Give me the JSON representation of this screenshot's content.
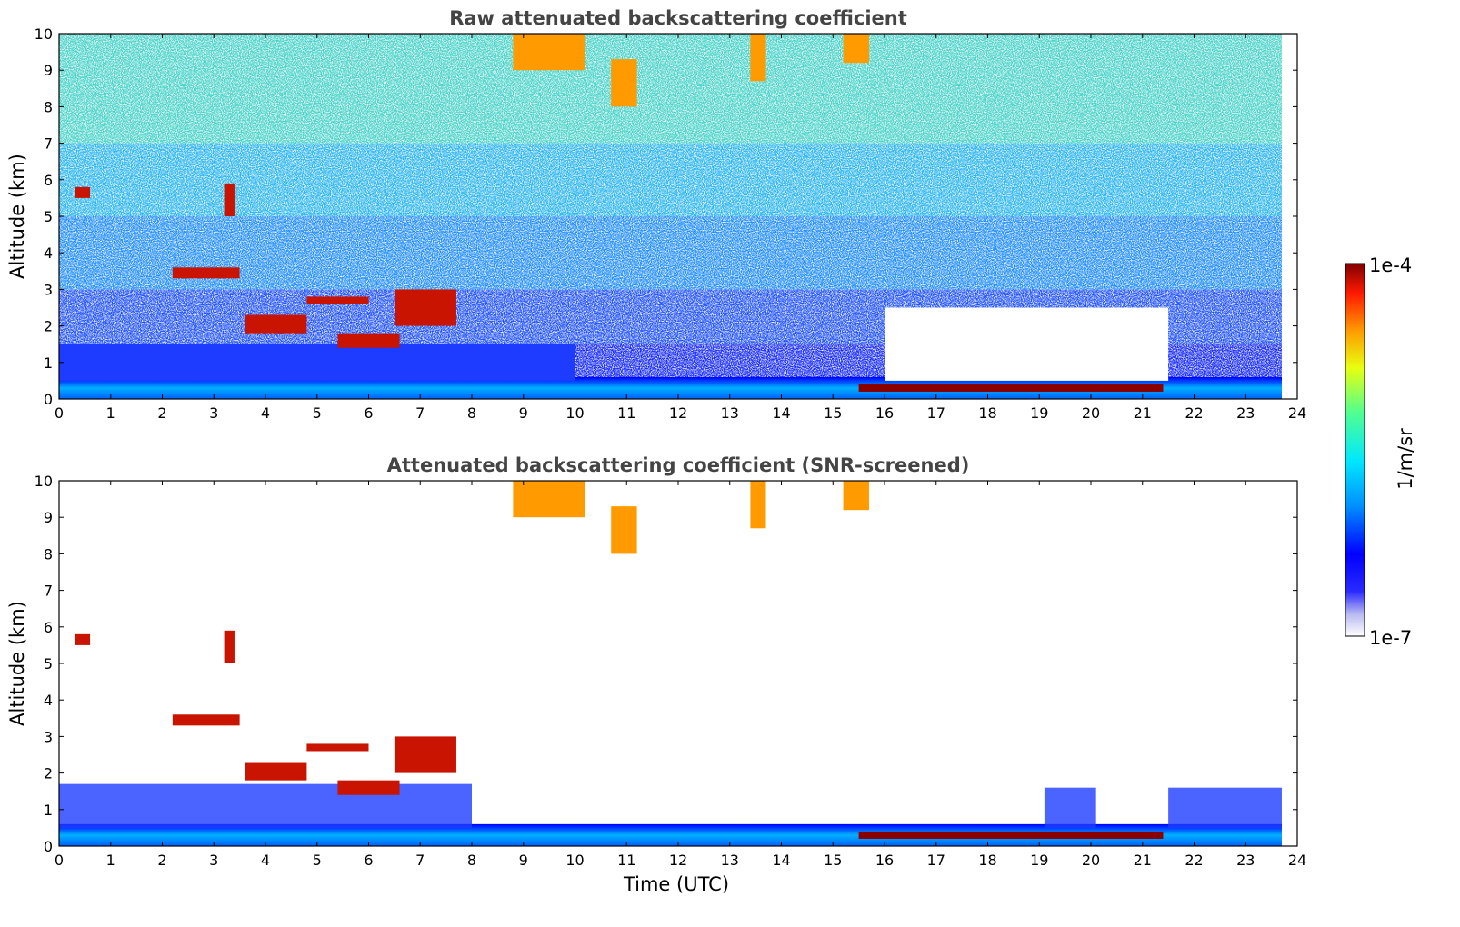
{
  "chart_data": [
    {
      "type": "heatmap",
      "title": "Raw attenuated backscattering coefficient",
      "xlabel": "",
      "ylabel": "Altitude (km)",
      "xlim": [
        0,
        24
      ],
      "ylim": [
        0,
        10
      ],
      "x_ticks": [
        "0",
        "1",
        "2",
        "3",
        "4",
        "5",
        "6",
        "7",
        "8",
        "9",
        "10",
        "11",
        "12",
        "13",
        "14",
        "15",
        "16",
        "17",
        "18",
        "19",
        "20",
        "21",
        "22",
        "23",
        "24"
      ],
      "y_ticks": [
        "0",
        "1",
        "2",
        "3",
        "4",
        "5",
        "6",
        "7",
        "8",
        "9",
        "10"
      ],
      "data_time_range": [
        0,
        23.7
      ],
      "colorscale": "jet",
      "features": [
        {
          "kind": "boundary_layer",
          "t": [
            0,
            23.7
          ],
          "alt": [
            0,
            0.6
          ]
        },
        {
          "kind": "aerosol_layer",
          "t": [
            0,
            10
          ],
          "alt": [
            0.5,
            1.5
          ]
        },
        {
          "kind": "cloud",
          "t": [
            0.3,
            0.6
          ],
          "alt": [
            5.5,
            5.8
          ]
        },
        {
          "kind": "cloud",
          "t": [
            3.2,
            3.4
          ],
          "alt": [
            5.0,
            5.9
          ]
        },
        {
          "kind": "cloud",
          "t": [
            2.2,
            3.5
          ],
          "alt": [
            3.3,
            3.6
          ]
        },
        {
          "kind": "cloud",
          "t": [
            3.6,
            4.8
          ],
          "alt": [
            1.8,
            2.3
          ]
        },
        {
          "kind": "cloud",
          "t": [
            4.8,
            6.0
          ],
          "alt": [
            2.6,
            2.8
          ]
        },
        {
          "kind": "cloud",
          "t": [
            5.4,
            6.6
          ],
          "alt": [
            1.4,
            1.8
          ]
        },
        {
          "kind": "cloud",
          "t": [
            6.5,
            7.7
          ],
          "alt": [
            2.0,
            3.0
          ]
        },
        {
          "kind": "cirrus",
          "t": [
            8.8,
            10.2
          ],
          "alt": [
            9.0,
            10.0
          ]
        },
        {
          "kind": "cirrus",
          "t": [
            10.7,
            11.2
          ],
          "alt": [
            8.0,
            9.3
          ]
        },
        {
          "kind": "cirrus",
          "t": [
            13.4,
            13.7
          ],
          "alt": [
            8.7,
            10.0
          ]
        },
        {
          "kind": "cirrus",
          "t": [
            15.2,
            15.7
          ],
          "alt": [
            9.2,
            10.0
          ]
        },
        {
          "kind": "low_cloud",
          "t": [
            15.5,
            21.4
          ],
          "alt": [
            0.2,
            0.4
          ]
        },
        {
          "kind": "attenuated_signal",
          "t": [
            16.0,
            21.5
          ],
          "alt": [
            0.5,
            2.5
          ]
        }
      ]
    },
    {
      "type": "heatmap",
      "title": "Attenuated backscattering coefficient (SNR-screened)",
      "xlabel": "Time (UTC)",
      "ylabel": "Altitude (km)",
      "xlim": [
        0,
        24
      ],
      "ylim": [
        0,
        10
      ],
      "x_ticks": [
        "0",
        "1",
        "2",
        "3",
        "4",
        "5",
        "6",
        "7",
        "8",
        "9",
        "10",
        "11",
        "12",
        "13",
        "14",
        "15",
        "16",
        "17",
        "18",
        "19",
        "20",
        "21",
        "22",
        "23",
        "24"
      ],
      "y_ticks": [
        "0",
        "1",
        "2",
        "3",
        "4",
        "5",
        "6",
        "7",
        "8",
        "9",
        "10"
      ],
      "data_time_range": [
        0,
        23.7
      ],
      "colorscale": "jet",
      "features": [
        {
          "kind": "boundary_layer",
          "t": [
            0,
            23.7
          ],
          "alt": [
            0,
            0.6
          ]
        },
        {
          "kind": "aerosol_layer",
          "t": [
            0,
            8
          ],
          "alt": [
            0.5,
            1.7
          ]
        },
        {
          "kind": "cloud",
          "t": [
            0.3,
            0.6
          ],
          "alt": [
            5.5,
            5.8
          ]
        },
        {
          "kind": "cloud",
          "t": [
            3.2,
            3.4
          ],
          "alt": [
            5.0,
            5.9
          ]
        },
        {
          "kind": "cloud",
          "t": [
            2.2,
            3.5
          ],
          "alt": [
            3.3,
            3.6
          ]
        },
        {
          "kind": "cloud",
          "t": [
            3.6,
            4.8
          ],
          "alt": [
            1.8,
            2.3
          ]
        },
        {
          "kind": "cloud",
          "t": [
            4.8,
            6.0
          ],
          "alt": [
            2.6,
            2.8
          ]
        },
        {
          "kind": "cloud",
          "t": [
            5.4,
            6.6
          ],
          "alt": [
            1.4,
            1.8
          ]
        },
        {
          "kind": "cloud",
          "t": [
            6.5,
            7.7
          ],
          "alt": [
            2.0,
            3.0
          ]
        },
        {
          "kind": "cirrus",
          "t": [
            8.8,
            10.2
          ],
          "alt": [
            9.0,
            10.0
          ]
        },
        {
          "kind": "cirrus",
          "t": [
            10.7,
            11.2
          ],
          "alt": [
            8.0,
            9.3
          ]
        },
        {
          "kind": "cirrus",
          "t": [
            13.4,
            13.7
          ],
          "alt": [
            8.7,
            10.0
          ]
        },
        {
          "kind": "cirrus",
          "t": [
            15.2,
            15.7
          ],
          "alt": [
            9.2,
            10.0
          ]
        },
        {
          "kind": "low_cloud",
          "t": [
            15.5,
            21.4
          ],
          "alt": [
            0.2,
            0.4
          ]
        },
        {
          "kind": "aerosol_layer",
          "t": [
            19.1,
            20.1
          ],
          "alt": [
            0.5,
            1.6
          ]
        },
        {
          "kind": "aerosol_layer",
          "t": [
            21.5,
            23.7
          ],
          "alt": [
            0.5,
            1.6
          ]
        }
      ]
    }
  ],
  "colorbar": {
    "label": "1/m/sr",
    "min_label": "1e-7",
    "max_label": "1e-4",
    "scale": "log",
    "range": [
      1e-07,
      0.0001
    ]
  }
}
